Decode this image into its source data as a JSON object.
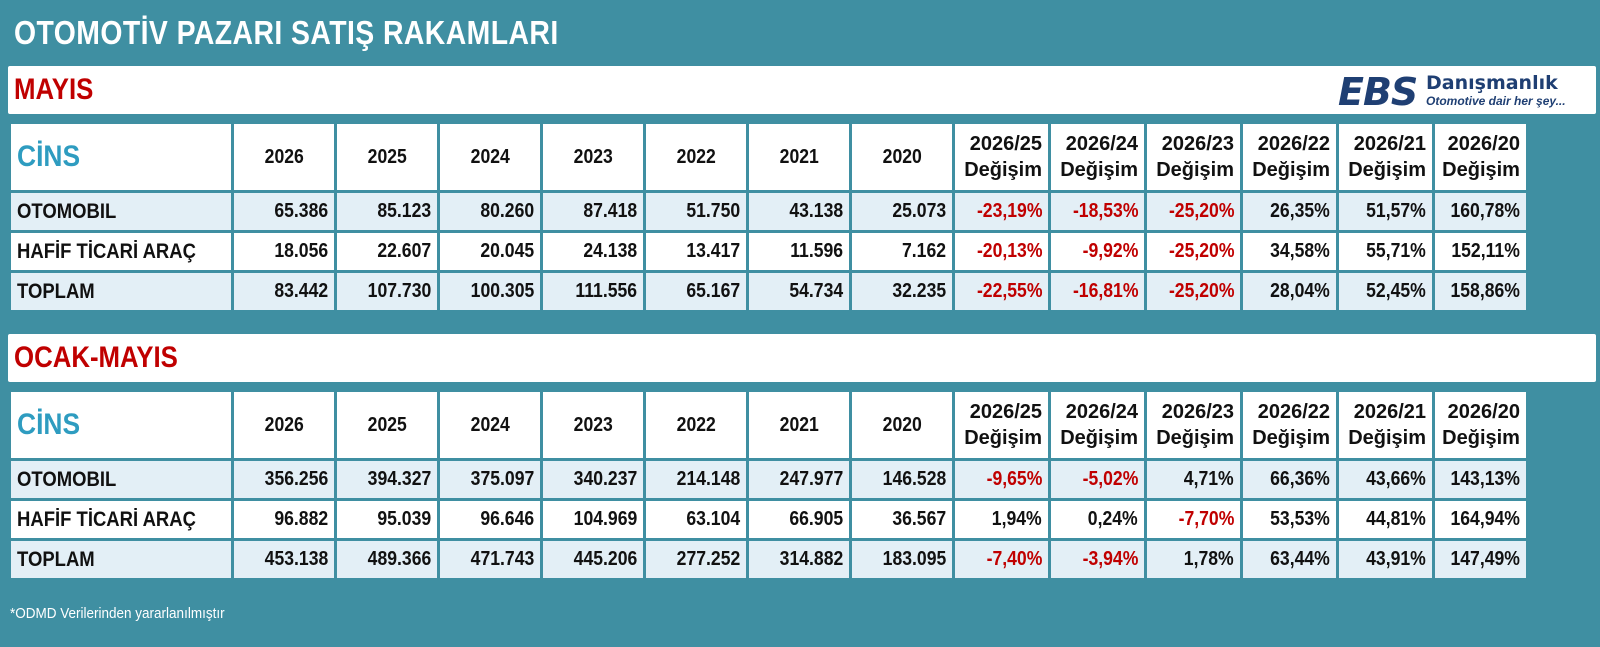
{
  "title": "OTOMOTİV PAZARI SATIŞ RAKAMLARI",
  "logo": {
    "mark": "EBS",
    "name": "Danışmanlık",
    "tagline": "Otomotive dair her şey..."
  },
  "colors": {
    "frame": "#3f8fa2",
    "header_text": "#2e9cc0",
    "negative": "#c00000",
    "alt_row": "#e3eff6"
  },
  "columns": {
    "cins": "CİNS",
    "years": [
      "2026",
      "2025",
      "2024",
      "2023",
      "2022",
      "2021",
      "2020"
    ],
    "changes": [
      {
        "period": "2026/25",
        "label": "Değişim"
      },
      {
        "period": "2026/24",
        "label": "Değişim"
      },
      {
        "period": "2026/23",
        "label": "Değişim"
      },
      {
        "period": "2026/22",
        "label": "Değişim"
      },
      {
        "period": "2026/21",
        "label": "Değişim"
      },
      {
        "period": "2026/20",
        "label": "Değişim"
      }
    ]
  },
  "sections": [
    {
      "label": "MAYIS",
      "rows": [
        {
          "cins": "OTOMOBIL",
          "values": [
            "65.386",
            "85.123",
            "80.260",
            "87.418",
            "51.750",
            "43.138",
            "25.073"
          ],
          "changes": [
            "-23,19%",
            "-18,53%",
            "-25,20%",
            "26,35%",
            "51,57%",
            "160,78%"
          ]
        },
        {
          "cins": "HAFİF TİCARİ ARAÇ",
          "values": [
            "18.056",
            "22.607",
            "20.045",
            "24.138",
            "13.417",
            "11.596",
            "7.162"
          ],
          "changes": [
            "-20,13%",
            "-9,92%",
            "-25,20%",
            "34,58%",
            "55,71%",
            "152,11%"
          ]
        },
        {
          "cins": "TOPLAM",
          "values": [
            "83.442",
            "107.730",
            "100.305",
            "111.556",
            "65.167",
            "54.734",
            "32.235"
          ],
          "changes": [
            "-22,55%",
            "-16,81%",
            "-25,20%",
            "28,04%",
            "52,45%",
            "158,86%"
          ]
        }
      ]
    },
    {
      "label": "OCAK-MAYIS",
      "rows": [
        {
          "cins": "OTOMOBIL",
          "values": [
            "356.256",
            "394.327",
            "375.097",
            "340.237",
            "214.148",
            "247.977",
            "146.528"
          ],
          "changes": [
            "-9,65%",
            "-5,02%",
            "4,71%",
            "66,36%",
            "43,66%",
            "143,13%"
          ]
        },
        {
          "cins": "HAFİF TİCARİ ARAÇ",
          "values": [
            "96.882",
            "95.039",
            "96.646",
            "104.969",
            "63.104",
            "66.905",
            "36.567"
          ],
          "changes": [
            "1,94%",
            "0,24%",
            "-7,70%",
            "53,53%",
            "44,81%",
            "164,94%"
          ]
        },
        {
          "cins": "TOPLAM",
          "values": [
            "453.138",
            "489.366",
            "471.743",
            "445.206",
            "277.252",
            "314.882",
            "183.095"
          ],
          "changes": [
            "-7,40%",
            "-3,94%",
            "1,78%",
            "63,44%",
            "43,91%",
            "147,49%"
          ]
        }
      ]
    }
  ],
  "footer": "*ODMD Verilerinden yararlanılmıştır"
}
